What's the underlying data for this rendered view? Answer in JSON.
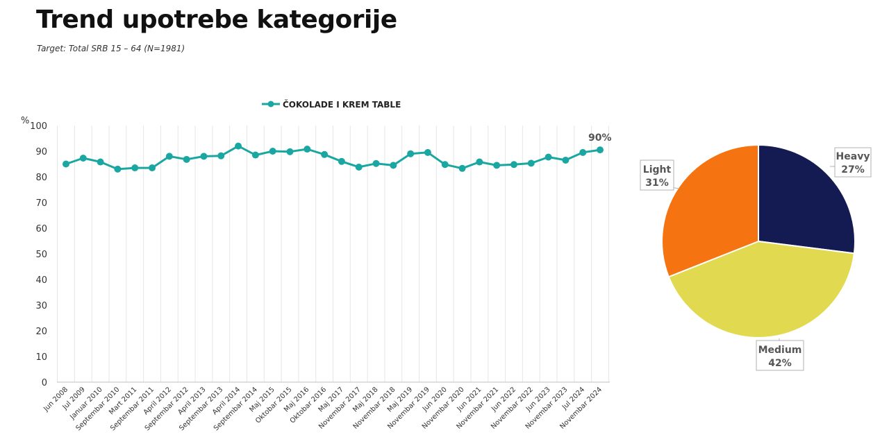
{
  "header": {
    "title": "Trend upotrebe kategorije",
    "subtitle": "Target: Total SRB 15 – 64 (N=1981)"
  },
  "colors": {
    "line": "#1aa7a2",
    "grid": "#e6e6e6",
    "heavy": "#141a52",
    "medium": "#e1da50",
    "light": "#f57411"
  },
  "chart_data": [
    {
      "type": "line",
      "ylabel": "%",
      "ylim": [
        0,
        100
      ],
      "yticks": [
        0,
        10,
        20,
        30,
        40,
        50,
        60,
        70,
        80,
        90,
        100
      ],
      "grid": "vertical",
      "legend_position": "top",
      "categories": [
        "Jun 2008",
        "Jul 2009",
        "Januar 2010",
        "Septembar 2010",
        "Mart 2011",
        "Septembar 2011",
        "April 2012",
        "Septembar 2012",
        "April 2013",
        "Septembar 2013",
        "April 2014",
        "Septembar 2014",
        "Maj 2015",
        "Oktobar 2015",
        "Maj 2016",
        "Oktobar 2016",
        "Maj 2017",
        "Novembar 2017",
        "Maj 2018",
        "Novembar 2018",
        "Maj 2019",
        "Novembar 2019",
        "Jun 2020",
        "Novembar 2020",
        "Jun 2021",
        "Novembar 2021",
        "Jun 2022",
        "Novembar 2022",
        "Jun 2023",
        "Novembar 2023",
        "Jul 2024",
        "Novembar 2024"
      ],
      "series": [
        {
          "name": "ČOKOLADE I KREM TABLE",
          "values": [
            85,
            87.3,
            85.8,
            83,
            83.5,
            83.5,
            88,
            86.8,
            88,
            88.2,
            92,
            88.5,
            90,
            89.8,
            90.8,
            88.7,
            86,
            83.8,
            85.2,
            84.5,
            89,
            89.5,
            84.8,
            83.3,
            85.8,
            84.5,
            84.8,
            85.3,
            87.7,
            86.5,
            89.5,
            90.5
          ]
        }
      ],
      "annotation": "90%"
    },
    {
      "type": "pie",
      "slices": [
        {
          "label": "Heavy",
          "value": 27,
          "text": "27%"
        },
        {
          "label": "Medium",
          "value": 42,
          "text": "42%"
        },
        {
          "label": "Light",
          "value": 31,
          "text": "31%"
        }
      ]
    }
  ]
}
